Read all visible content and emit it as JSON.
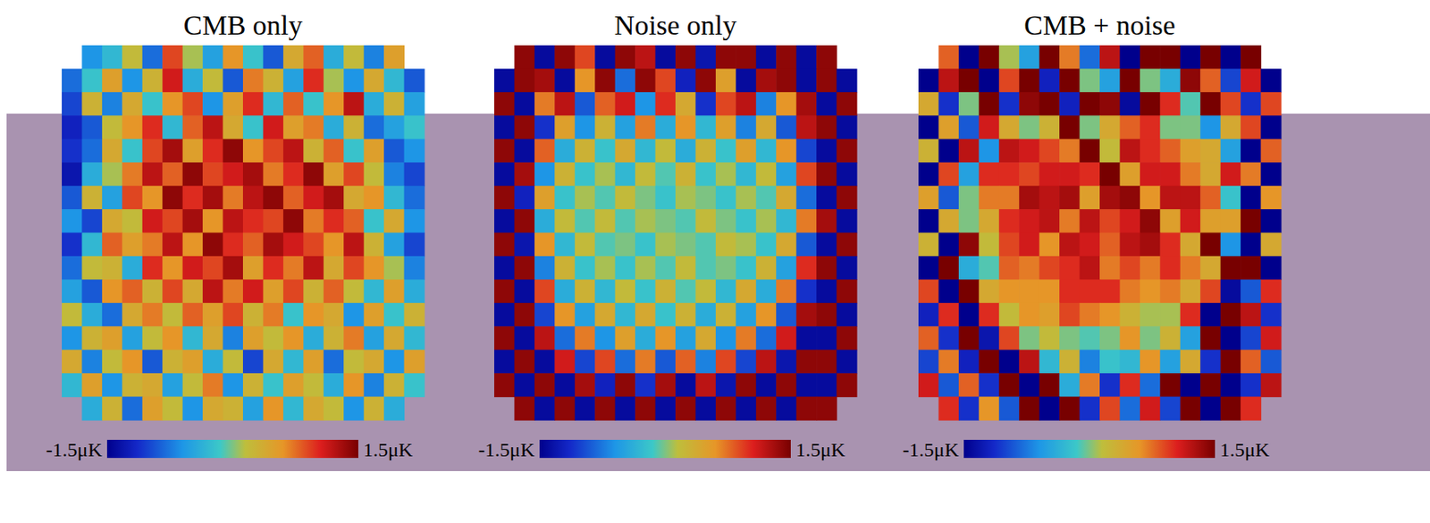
{
  "chart_data": [
    {
      "type": "heatmap",
      "title": "CMB only",
      "cells": [
        [
          null,
          -0.6,
          -0.3,
          0.2,
          -0.8,
          0.9,
          0.1,
          -0.5,
          0.6,
          -0.2,
          -0.9,
          0.4,
          0.8,
          -0.4,
          0.2,
          -0.7,
          0.5,
          null
        ],
        [
          -0.8,
          -0.2,
          0.5,
          -0.6,
          0.3,
          1.1,
          -0.4,
          0.2,
          -0.9,
          0.7,
          0.3,
          -0.5,
          1.0,
          0.1,
          -0.6,
          0.4,
          -0.3,
          -0.9
        ],
        [
          -1.0,
          0.3,
          -0.7,
          0.4,
          -0.2,
          0.6,
          0.9,
          -0.6,
          0.5,
          1.0,
          -0.3,
          0.8,
          -0.2,
          0.6,
          1.2,
          -0.4,
          0.3,
          -0.5
        ],
        [
          -1.2,
          -0.9,
          0.2,
          0.6,
          1.0,
          -0.3,
          0.8,
          1.2,
          0.4,
          -0.2,
          1.1,
          0.5,
          0.7,
          -0.4,
          0.3,
          -0.8,
          -0.5,
          -0.2
        ],
        [
          -1.1,
          -0.8,
          0.4,
          -0.2,
          0.9,
          1.3,
          0.5,
          1.0,
          1.4,
          0.6,
          0.9,
          1.2,
          0.3,
          0.8,
          -0.2,
          0.5,
          -0.9,
          -0.6
        ],
        [
          -1.3,
          -0.4,
          0.1,
          0.7,
          1.2,
          0.8,
          1.4,
          0.9,
          1.1,
          1.3,
          0.7,
          1.0,
          1.4,
          0.5,
          0.9,
          0.2,
          -0.7,
          -1.0
        ],
        [
          -0.9,
          0.3,
          -0.5,
          0.9,
          0.6,
          1.4,
          1.0,
          1.3,
          0.7,
          1.2,
          1.4,
          0.8,
          1.1,
          1.3,
          0.4,
          0.6,
          -0.3,
          -0.8
        ],
        [
          -0.6,
          -1.0,
          0.4,
          0.2,
          1.1,
          0.9,
          1.3,
          0.6,
          1.2,
          1.0,
          0.9,
          1.4,
          0.7,
          1.0,
          0.8,
          -0.2,
          0.4,
          -0.6
        ],
        [
          -1.1,
          -0.3,
          0.8,
          0.5,
          0.7,
          1.2,
          0.6,
          1.4,
          1.0,
          0.8,
          1.3,
          1.1,
          0.9,
          0.6,
          1.2,
          0.3,
          -0.5,
          -1.0
        ],
        [
          -0.8,
          0.2,
          0.3,
          -0.4,
          1.0,
          0.6,
          1.1,
          0.9,
          1.3,
          0.5,
          1.0,
          0.7,
          1.2,
          0.4,
          0.9,
          0.6,
          0.1,
          -0.7
        ],
        [
          -0.5,
          -0.9,
          0.6,
          0.8,
          0.3,
          0.9,
          0.4,
          1.2,
          0.7,
          1.1,
          0.5,
          0.9,
          0.3,
          0.8,
          0.2,
          -0.3,
          0.5,
          -0.4
        ],
        [
          0.2,
          -0.4,
          -0.8,
          0.4,
          0.7,
          0.2,
          0.8,
          0.5,
          0.9,
          0.3,
          0.7,
          -0.2,
          0.6,
          0.4,
          -0.6,
          0.5,
          -0.2,
          0.3
        ],
        [
          -0.6,
          0.3,
          0.5,
          -0.5,
          0.2,
          0.6,
          -0.3,
          0.4,
          -0.7,
          0.5,
          0.2,
          0.6,
          -0.4,
          0.3,
          0.7,
          -0.5,
          0.4,
          -0.3
        ],
        [
          0.4,
          -0.7,
          0.2,
          0.6,
          -0.9,
          0.3,
          0.5,
          -0.4,
          0.2,
          -1.0,
          0.4,
          -0.3,
          0.5,
          -0.8,
          0.2,
          0.4,
          -0.6,
          0.5
        ],
        [
          -0.3,
          0.5,
          -0.6,
          0.3,
          0.4,
          -0.5,
          0.2,
          0.7,
          -0.6,
          0.3,
          -0.2,
          0.5,
          0.2,
          -0.4,
          0.6,
          -0.7,
          0.3,
          -0.2
        ],
        [
          null,
          -0.4,
          0.3,
          -0.8,
          0.5,
          0.2,
          -0.6,
          0.4,
          0.3,
          -0.5,
          0.6,
          -0.3,
          0.4,
          0.2,
          -0.6,
          0.3,
          -0.4,
          null
        ]
      ],
      "colorbar_range": [
        -1.5,
        1.5
      ],
      "colorbar_ticks": [
        {
          "value": -1.5,
          "label": "-1.5μK"
        },
        {
          "value": 1.5,
          "label": "1.5μK"
        }
      ]
    },
    {
      "type": "heatmap",
      "title": "Noise only",
      "cells": [
        [
          null,
          1.4,
          -1.4,
          1.4,
          0.9,
          -1.4,
          1.4,
          1.2,
          -1.4,
          1.4,
          -1.3,
          1.4,
          1.4,
          -1.4,
          1.4,
          -1.4,
          1.4,
          null
        ],
        [
          -1.4,
          1.4,
          1.3,
          -1.4,
          0.6,
          1.4,
          -0.8,
          1.4,
          0.9,
          -1.2,
          1.4,
          0.5,
          -1.4,
          1.3,
          1.4,
          -1.4,
          1.4,
          -1.4
        ],
        [
          1.4,
          -1.4,
          0.7,
          1.2,
          -0.9,
          0.8,
          1.1,
          -0.6,
          1.0,
          0.4,
          -1.1,
          0.9,
          1.2,
          -0.7,
          0.6,
          1.3,
          -1.4,
          1.4
        ],
        [
          -1.4,
          1.4,
          -1.1,
          0.5,
          -0.6,
          0.3,
          -0.5,
          0.7,
          -0.4,
          0.6,
          -0.3,
          0.5,
          -0.7,
          0.4,
          -0.9,
          1.2,
          1.4,
          -1.4
        ],
        [
          1.4,
          -1.4,
          0.8,
          -0.4,
          0.3,
          -0.2,
          0.4,
          -0.3,
          0.2,
          -0.4,
          0.3,
          -0.2,
          0.5,
          -0.3,
          0.6,
          -1.0,
          -1.4,
          1.4
        ],
        [
          -1.4,
          1.3,
          -0.6,
          0.3,
          -0.2,
          0.1,
          -0.3,
          0.2,
          -0.1,
          0.3,
          -0.2,
          0.1,
          -0.3,
          0.2,
          -0.5,
          0.9,
          1.4,
          -1.4
        ],
        [
          1.4,
          -1.2,
          0.5,
          -0.2,
          0.1,
          -0.1,
          0.2,
          0.0,
          -0.2,
          0.1,
          0.0,
          -0.2,
          0.1,
          -0.1,
          0.4,
          -0.8,
          -1.4,
          1.4
        ],
        [
          -1.4,
          1.4,
          -0.4,
          0.2,
          -0.1,
          0.2,
          -0.1,
          0.1,
          0.0,
          -0.1,
          0.2,
          0.0,
          -0.2,
          0.1,
          -0.3,
          0.7,
          1.3,
          -1.4
        ],
        [
          1.4,
          -1.3,
          0.6,
          -0.3,
          0.2,
          -0.1,
          0.0,
          -0.2,
          0.1,
          0.0,
          -0.1,
          0.2,
          0.1,
          -0.2,
          0.4,
          -0.9,
          -1.4,
          1.4
        ],
        [
          -1.4,
          1.4,
          -0.7,
          0.3,
          -0.2,
          0.1,
          -0.2,
          0.1,
          -0.1,
          0.2,
          -0.1,
          0.0,
          -0.2,
          0.3,
          -0.5,
          1.0,
          1.4,
          -1.4
        ],
        [
          1.4,
          -1.4,
          0.9,
          -0.4,
          0.3,
          -0.3,
          0.2,
          -0.2,
          0.3,
          -0.1,
          0.2,
          -0.3,
          0.4,
          -0.4,
          0.7,
          -1.1,
          -1.4,
          1.4
        ],
        [
          -1.4,
          1.4,
          -1.0,
          0.6,
          -0.5,
          0.4,
          -0.3,
          0.4,
          -0.2,
          0.3,
          -0.4,
          0.3,
          -0.5,
          0.6,
          -0.9,
          1.3,
          1.4,
          -1.4
        ],
        [
          1.4,
          -1.4,
          1.2,
          -0.8,
          0.7,
          -0.6,
          0.5,
          -0.4,
          0.6,
          -0.5,
          0.4,
          -0.6,
          0.7,
          -0.8,
          1.1,
          -1.4,
          -1.4,
          1.4
        ],
        [
          -1.4,
          1.4,
          -1.4,
          1.1,
          -1.0,
          0.9,
          -0.8,
          0.7,
          -0.9,
          0.8,
          -0.7,
          0.9,
          -1.0,
          1.2,
          -1.3,
          1.4,
          1.4,
          -1.4
        ],
        [
          1.4,
          -1.4,
          1.4,
          -1.4,
          1.3,
          -1.2,
          1.4,
          -1.1,
          1.3,
          -1.4,
          1.2,
          -1.3,
          1.4,
          -1.4,
          1.4,
          -1.4,
          -1.4,
          1.4
        ],
        [
          null,
          1.4,
          -1.4,
          1.4,
          -1.4,
          1.4,
          -1.4,
          1.4,
          -1.4,
          1.4,
          -1.4,
          1.4,
          -1.4,
          1.4,
          -1.4,
          1.4,
          1.4,
          null
        ]
      ],
      "colorbar_range": [
        -1.5,
        1.5
      ],
      "colorbar_ticks": [
        {
          "value": -1.5,
          "label": "-1.5μK"
        },
        {
          "value": 1.5,
          "label": "1.5μK"
        }
      ]
    },
    {
      "type": "heatmap",
      "title": "CMB + noise",
      "cells": [
        [
          null,
          0.8,
          -1.5,
          1.5,
          0.1,
          -0.5,
          1.5,
          0.7,
          -0.8,
          1.2,
          -1.5,
          1.5,
          1.5,
          -1.5,
          1.5,
          -1.5,
          1.5,
          null
        ],
        [
          -1.5,
          1.2,
          1.5,
          -1.5,
          0.9,
          1.5,
          -1.2,
          1.5,
          0.0,
          -0.5,
          1.5,
          0.0,
          -0.4,
          1.4,
          0.8,
          -1.0,
          1.1,
          -1.5
        ],
        [
          0.4,
          -1.1,
          0.0,
          1.5,
          -1.1,
          1.4,
          1.5,
          -1.2,
          1.5,
          1.4,
          -1.4,
          1.5,
          1.0,
          -0.1,
          1.5,
          0.9,
          -1.1,
          0.9
        ],
        [
          -1.5,
          0.5,
          -0.9,
          1.1,
          0.4,
          0.0,
          0.3,
          1.5,
          0.0,
          0.4,
          0.8,
          1.0,
          0.0,
          0.0,
          -0.6,
          0.4,
          0.9,
          -1.5
        ],
        [
          0.3,
          -1.5,
          1.2,
          -0.6,
          1.2,
          1.1,
          0.9,
          0.7,
          1.5,
          0.2,
          1.2,
          1.0,
          0.8,
          0.5,
          0.4,
          -0.5,
          -1.5,
          0.8
        ],
        [
          -1.5,
          0.9,
          -0.5,
          1.0,
          1.0,
          0.9,
          1.1,
          1.1,
          1.0,
          1.5,
          0.5,
          1.1,
          1.1,
          0.7,
          0.4,
          1.1,
          0.7,
          -1.5
        ],
        [
          0.5,
          -0.9,
          0.0,
          0.7,
          0.7,
          1.3,
          1.2,
          1.3,
          0.5,
          1.3,
          1.4,
          0.6,
          1.2,
          1.2,
          0.8,
          -0.2,
          -1.5,
          0.6
        ],
        [
          -1.5,
          0.4,
          0.0,
          0.4,
          1.0,
          1.1,
          1.2,
          0.7,
          1.2,
          0.9,
          1.1,
          1.4,
          0.5,
          1.1,
          0.5,
          0.5,
          1.5,
          -1.5
        ],
        [
          0.3,
          -1.5,
          1.4,
          0.2,
          0.9,
          1.1,
          0.6,
          1.2,
          1.1,
          0.8,
          1.2,
          1.3,
          1.0,
          0.4,
          1.5,
          -0.6,
          -1.5,
          0.4
        ],
        [
          -1.5,
          1.5,
          -0.4,
          -0.1,
          0.8,
          0.7,
          0.9,
          1.0,
          1.2,
          0.7,
          0.9,
          0.7,
          1.0,
          0.7,
          0.4,
          1.5,
          1.5,
          -1.5
        ],
        [
          0.9,
          -1.5,
          1.5,
          0.4,
          0.6,
          0.6,
          0.6,
          1.0,
          1.0,
          1.0,
          0.7,
          0.6,
          0.7,
          0.4,
          0.9,
          -1.4,
          -0.9,
          1.0
        ],
        [
          -1.2,
          1.0,
          -1.5,
          1.0,
          0.2,
          0.6,
          0.5,
          0.9,
          0.7,
          0.6,
          0.3,
          0.1,
          0.1,
          1.0,
          -1.5,
          1.5,
          1.2,
          -1.1
        ],
        [
          0.8,
          -1.1,
          1.5,
          -1.3,
          0.9,
          0.0,
          0.2,
          0.0,
          -0.1,
          0.0,
          0.6,
          0.0,
          0.3,
          -0.5,
          1.5,
          -1.5,
          -1.0,
          1.1
        ],
        [
          -1.0,
          0.7,
          -1.2,
          1.5,
          -1.5,
          1.2,
          -0.3,
          0.3,
          -0.7,
          -0.2,
          -0.3,
          0.6,
          -0.5,
          0.4,
          -1.1,
          1.5,
          0.8,
          -0.9
        ],
        [
          1.1,
          -0.9,
          0.8,
          -1.1,
          1.5,
          -1.5,
          1.5,
          -0.4,
          0.7,
          -1.1,
          1.0,
          -0.8,
          1.5,
          -1.5,
          1.5,
          -1.5,
          -1.1,
          1.2
        ],
        [
          null,
          1.0,
          -1.1,
          0.6,
          -0.9,
          1.5,
          -1.5,
          1.5,
          -1.1,
          0.9,
          -0.8,
          1.1,
          -1.0,
          1.5,
          -1.5,
          1.5,
          1.0,
          null
        ]
      ],
      "colorbar_range": [
        -1.5,
        1.5
      ],
      "colorbar_ticks": [
        {
          "value": -1.5,
          "label": "-1.5μK"
        },
        {
          "value": 1.5,
          "label": "1.5μK"
        }
      ]
    }
  ]
}
